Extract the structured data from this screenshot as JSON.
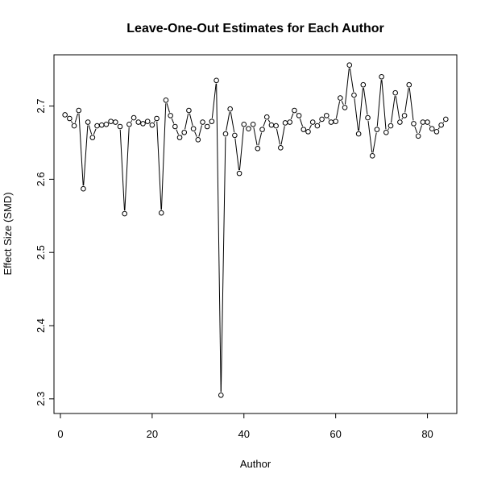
{
  "chart_data": {
    "type": "line",
    "title": "Leave-One-Out Estimates for Each Author",
    "xlabel": "Author",
    "ylabel": "Effect Size (SMD)",
    "xlim": [
      -1.4,
      86.4
    ],
    "ylim": [
      2.28,
      2.77
    ],
    "x_ticks": [
      0,
      20,
      40,
      60,
      80
    ],
    "y_ticks": [
      2.3,
      2.4,
      2.5,
      2.6,
      2.7
    ],
    "x_tick_labels": [
      "0",
      "20",
      "40",
      "60",
      "80"
    ],
    "y_tick_labels": [
      "2.3",
      "2.4",
      "2.5",
      "2.6",
      "2.7"
    ],
    "grid": false,
    "marker": "open-circle",
    "series": [
      {
        "x": [
          1,
          2,
          3,
          4,
          5,
          6,
          7,
          8,
          9,
          10,
          11,
          12,
          13,
          14,
          15,
          16,
          17,
          18,
          19,
          20,
          21,
          22,
          23,
          24,
          25,
          26,
          27,
          28,
          29,
          30,
          31,
          32,
          33,
          34,
          35,
          36,
          37,
          38,
          39,
          40,
          41,
          42,
          43,
          44,
          45,
          46,
          47,
          48,
          49,
          50,
          51,
          52,
          53,
          54,
          55,
          56,
          57,
          58,
          59,
          60,
          61,
          62,
          63,
          64,
          65,
          66,
          67,
          68,
          69,
          70,
          71,
          72,
          73,
          74,
          75,
          76,
          77,
          78,
          79,
          80,
          81,
          82,
          83,
          84
        ],
        "values": [
          2.688,
          2.683,
          2.673,
          2.694,
          2.587,
          2.678,
          2.657,
          2.673,
          2.674,
          2.675,
          2.679,
          2.678,
          2.672,
          2.553,
          2.675,
          2.684,
          2.678,
          2.676,
          2.679,
          2.674,
          2.683,
          2.554,
          2.708,
          2.687,
          2.672,
          2.657,
          2.664,
          2.694,
          2.669,
          2.654,
          2.678,
          2.672,
          2.679,
          2.735,
          2.305,
          2.662,
          2.696,
          2.66,
          2.608,
          2.675,
          2.669,
          2.675,
          2.642,
          2.668,
          2.685,
          2.674,
          2.673,
          2.643,
          2.677,
          2.678,
          2.694,
          2.687,
          2.668,
          2.665,
          2.678,
          2.673,
          2.682,
          2.687,
          2.678,
          2.679,
          2.711,
          2.698,
          2.756,
          2.715,
          2.662,
          2.729,
          2.684,
          2.632,
          2.668,
          2.74,
          2.664,
          2.673,
          2.718,
          2.678,
          2.687,
          2.729,
          2.676,
          2.659,
          2.678,
          2.678,
          2.669,
          2.665,
          2.674,
          2.682
        ]
      }
    ]
  },
  "colors": {
    "line": "#000000",
    "marker_stroke": "#000000",
    "marker_fill": "#ffffff"
  }
}
